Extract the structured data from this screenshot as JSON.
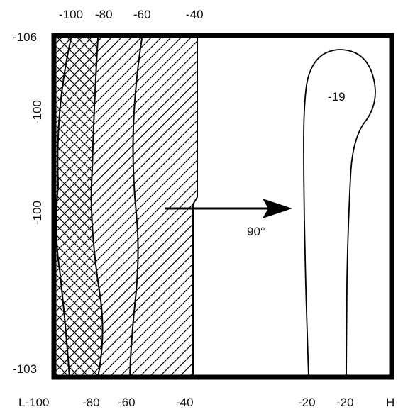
{
  "diagram": {
    "top_labels": [
      "-100",
      "-80",
      "-60",
      "-40"
    ],
    "left_labels": [
      "-106",
      "-100",
      "-100",
      "-103"
    ],
    "bottom_labels": [
      "L-100",
      "-80",
      "-60",
      "-40",
      "-20",
      "-20",
      "H"
    ],
    "contour_label": "-19",
    "arrow_label": "90°",
    "colors": {
      "ink": "#000000",
      "background": "#ffffff"
    }
  }
}
